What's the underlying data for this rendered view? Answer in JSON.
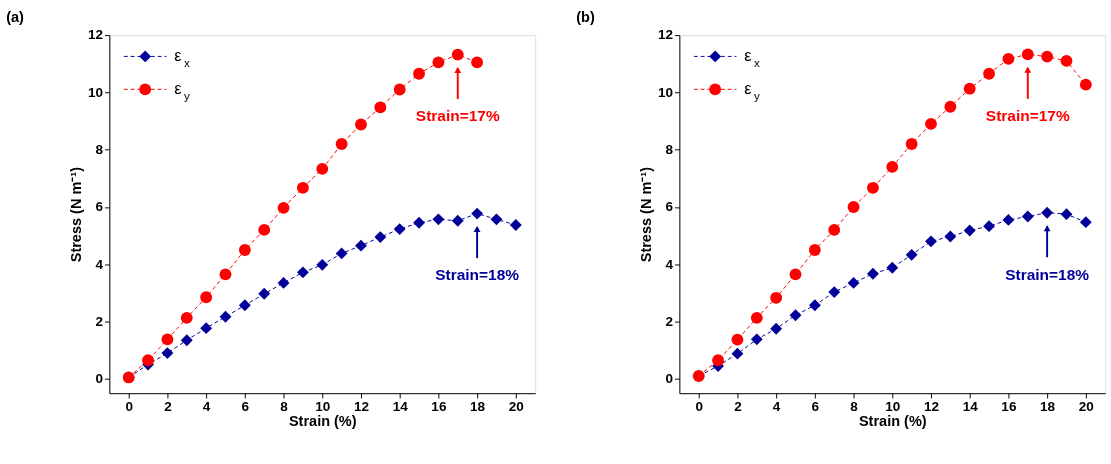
{
  "chart_data": [
    {
      "type": "line",
      "title": "(a)",
      "xlabel": "Strain (%)",
      "ylabel": "Stress (N m⁻¹)",
      "xlim": [
        -1,
        21
      ],
      "ylim": [
        -0.5,
        12
      ],
      "xticks": [
        0,
        2,
        4,
        6,
        8,
        10,
        12,
        14,
        16,
        18,
        20
      ],
      "yticks": [
        0,
        2,
        4,
        6,
        8,
        10,
        12
      ],
      "legend": "top left",
      "line_style": "dashed",
      "grid": false,
      "series": [
        {
          "name": "ε$_{x}$",
          "color": "#000099",
          "marker": "diamond",
          "x": [
            0,
            1,
            2,
            3,
            4,
            5,
            6,
            7,
            8,
            9,
            10,
            11,
            12,
            13,
            14,
            15,
            16,
            17,
            18,
            19,
            20
          ],
          "values": [
            0.05,
            0.5,
            0.9,
            1.35,
            1.77,
            2.17,
            2.57,
            2.97,
            3.35,
            3.72,
            3.98,
            4.38,
            4.65,
            4.95,
            5.23,
            5.45,
            5.57,
            5.52,
            5.77,
            5.57,
            5.37
          ]
        },
        {
          "name": "ε$_{y}$",
          "color": "#ff0000",
          "marker": "circle",
          "x": [
            0,
            1,
            2,
            3,
            4,
            5,
            6,
            7,
            8,
            9,
            10,
            11,
            12,
            13,
            14,
            15,
            16,
            17,
            18
          ],
          "values": [
            0.05,
            0.65,
            1.38,
            2.13,
            2.85,
            3.65,
            4.5,
            5.2,
            5.97,
            6.67,
            7.33,
            8.2,
            8.88,
            9.48,
            10.1,
            10.65,
            11.05,
            11.32,
            11.05
          ]
        }
      ],
      "annotations": [
        "Strain=18%",
        "Strain=17%"
      ]
    },
    {
      "type": "line",
      "title": "(b)",
      "xlabel": "Strain (%)",
      "ylabel": "Stress (N m⁻¹)",
      "xlim": [
        -1,
        21
      ],
      "ylim": [
        -0.5,
        12
      ],
      "xticks": [
        0,
        2,
        4,
        6,
        8,
        10,
        12,
        14,
        16,
        18,
        20
      ],
      "yticks": [
        0,
        2,
        4,
        6,
        8,
        10,
        12
      ],
      "legend": "top left",
      "line_style": "dashed",
      "grid": false,
      "series": [
        {
          "name": "ε$_{x}$",
          "color": "#000099",
          "marker": "diamond",
          "x": [
            0,
            1,
            2,
            3,
            4,
            5,
            6,
            7,
            8,
            9,
            10,
            11,
            12,
            13,
            14,
            15,
            16,
            17,
            18,
            19,
            20
          ],
          "values": [
            0.1,
            0.45,
            0.88,
            1.38,
            1.75,
            2.22,
            2.57,
            3.03,
            3.35,
            3.67,
            3.88,
            4.33,
            4.8,
            4.97,
            5.18,
            5.33,
            5.55,
            5.67,
            5.8,
            5.75,
            5.47
          ]
        },
        {
          "name": "ε$_{y}$",
          "color": "#ff0000",
          "marker": "circle",
          "x": [
            0,
            1,
            2,
            3,
            4,
            5,
            6,
            7,
            8,
            9,
            10,
            11,
            12,
            13,
            14,
            15,
            16,
            17,
            18,
            19,
            20
          ],
          "values": [
            0.1,
            0.65,
            1.37,
            2.13,
            2.83,
            3.65,
            4.5,
            5.2,
            6.0,
            6.67,
            7.4,
            8.2,
            8.9,
            9.5,
            10.13,
            10.65,
            11.17,
            11.33,
            11.25,
            11.1,
            10.27
          ]
        }
      ],
      "annotations": [
        "Strain=18%",
        "Strain=17%"
      ]
    }
  ]
}
